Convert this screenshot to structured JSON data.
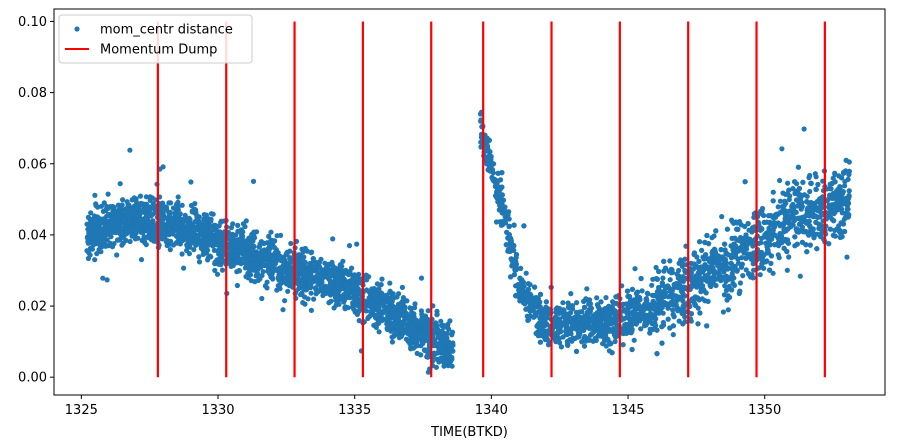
{
  "chart_data": {
    "type": "scatter",
    "title": "",
    "xlabel": "TIME(BTKD)",
    "ylabel": "",
    "xlim": [
      1324.0,
      1354.4
    ],
    "ylim": [
      -0.005,
      0.1035
    ],
    "x_ticks": [
      1325,
      1330,
      1335,
      1340,
      1345,
      1350
    ],
    "x_tick_labels": [
      "1325",
      "1330",
      "1335",
      "1340",
      "1345",
      "1350"
    ],
    "y_ticks": [
      0.0,
      0.02,
      0.04,
      0.06,
      0.08,
      0.1
    ],
    "y_tick_labels": [
      "0.00",
      "0.02",
      "0.04",
      "0.06",
      "0.08",
      "0.10"
    ],
    "legend_position": "top-left",
    "grid": false,
    "colors": {
      "scatter": "#1f77b4",
      "dump": "#ff0000",
      "axis": "#000000"
    },
    "series": [
      {
        "name": "mom_centr distance",
        "kind": "markers",
        "trend": {
          "segments": [
            {
              "x_start": 1325.2,
              "x_end": 1338.6,
              "center": [
                [
                  1325.2,
                  0.04
                ],
                [
                  1327.0,
                  0.045
                ],
                [
                  1328.5,
                  0.043
                ],
                [
                  1330.0,
                  0.038
                ],
                [
                  1332.0,
                  0.032
                ],
                [
                  1334.0,
                  0.027
                ],
                [
                  1336.0,
                  0.02
                ],
                [
                  1337.5,
                  0.013
                ],
                [
                  1338.6,
                  0.008
                ]
              ]
            },
            {
              "x_start": 1339.6,
              "x_end": 1353.1,
              "center": [
                [
                  1339.6,
                  0.07
                ],
                [
                  1340.5,
                  0.045
                ],
                [
                  1341.0,
                  0.025
                ],
                [
                  1342.0,
                  0.015
                ],
                [
                  1344.0,
                  0.015
                ],
                [
                  1346.0,
                  0.02
                ],
                [
                  1348.0,
                  0.03
                ],
                [
                  1349.5,
                  0.036
                ],
                [
                  1351.0,
                  0.045
                ],
                [
                  1353.1,
                  0.05
                ]
              ]
            }
          ]
        }
      },
      {
        "name": "Momentum Dump",
        "kind": "vertical_lines",
        "x": [
          1327.8,
          1330.3,
          1332.8,
          1335.3,
          1337.8,
          1339.7,
          1342.2,
          1344.7,
          1347.2,
          1349.7,
          1352.2
        ],
        "y_range": [
          0.0,
          0.1
        ]
      }
    ]
  }
}
